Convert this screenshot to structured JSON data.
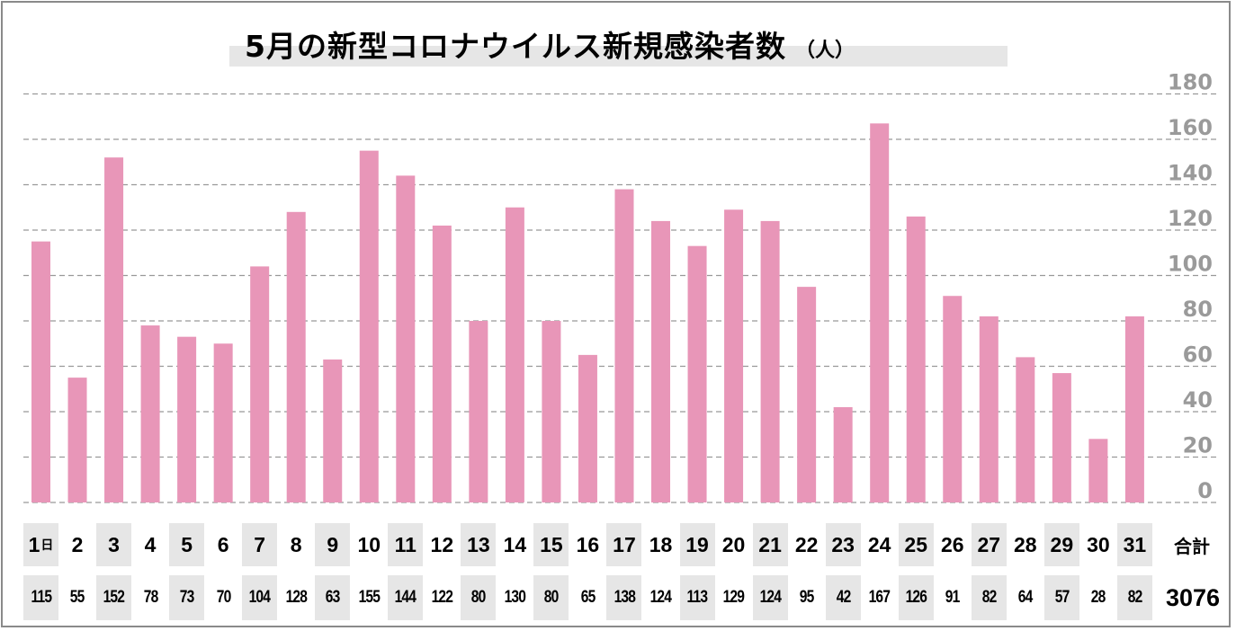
{
  "chart_data": {
    "type": "bar",
    "title": "5月の新型コロナウイルス新規感染者数",
    "title_unit": "（人）",
    "xlabel": "",
    "ylabel": "",
    "ylim": [
      0,
      180
    ],
    "yticks": [
      0,
      20,
      40,
      60,
      80,
      100,
      120,
      140,
      160,
      180
    ],
    "y_axis_side": "right",
    "grid": true,
    "grid_style": "dashed",
    "bar_color": "#e896b8",
    "categories": [
      "1",
      "2",
      "3",
      "4",
      "5",
      "6",
      "7",
      "8",
      "9",
      "10",
      "11",
      "12",
      "13",
      "14",
      "15",
      "16",
      "17",
      "18",
      "19",
      "20",
      "21",
      "22",
      "23",
      "24",
      "25",
      "26",
      "27",
      "28",
      "29",
      "30",
      "31"
    ],
    "first_category_suffix": "日",
    "values": [
      115,
      55,
      152,
      78,
      73,
      70,
      104,
      128,
      63,
      155,
      144,
      122,
      80,
      130,
      80,
      65,
      138,
      124,
      113,
      129,
      124,
      95,
      42,
      167,
      126,
      91,
      82,
      64,
      57,
      28,
      82
    ],
    "total_label": "合計",
    "total_value": "3076"
  },
  "colors": {
    "bar": "#e896b8",
    "grid": "#999999",
    "tick_text": "#9a9a9a",
    "cell_shade": "#e6e6e6",
    "frame": "#8a8a8a"
  }
}
